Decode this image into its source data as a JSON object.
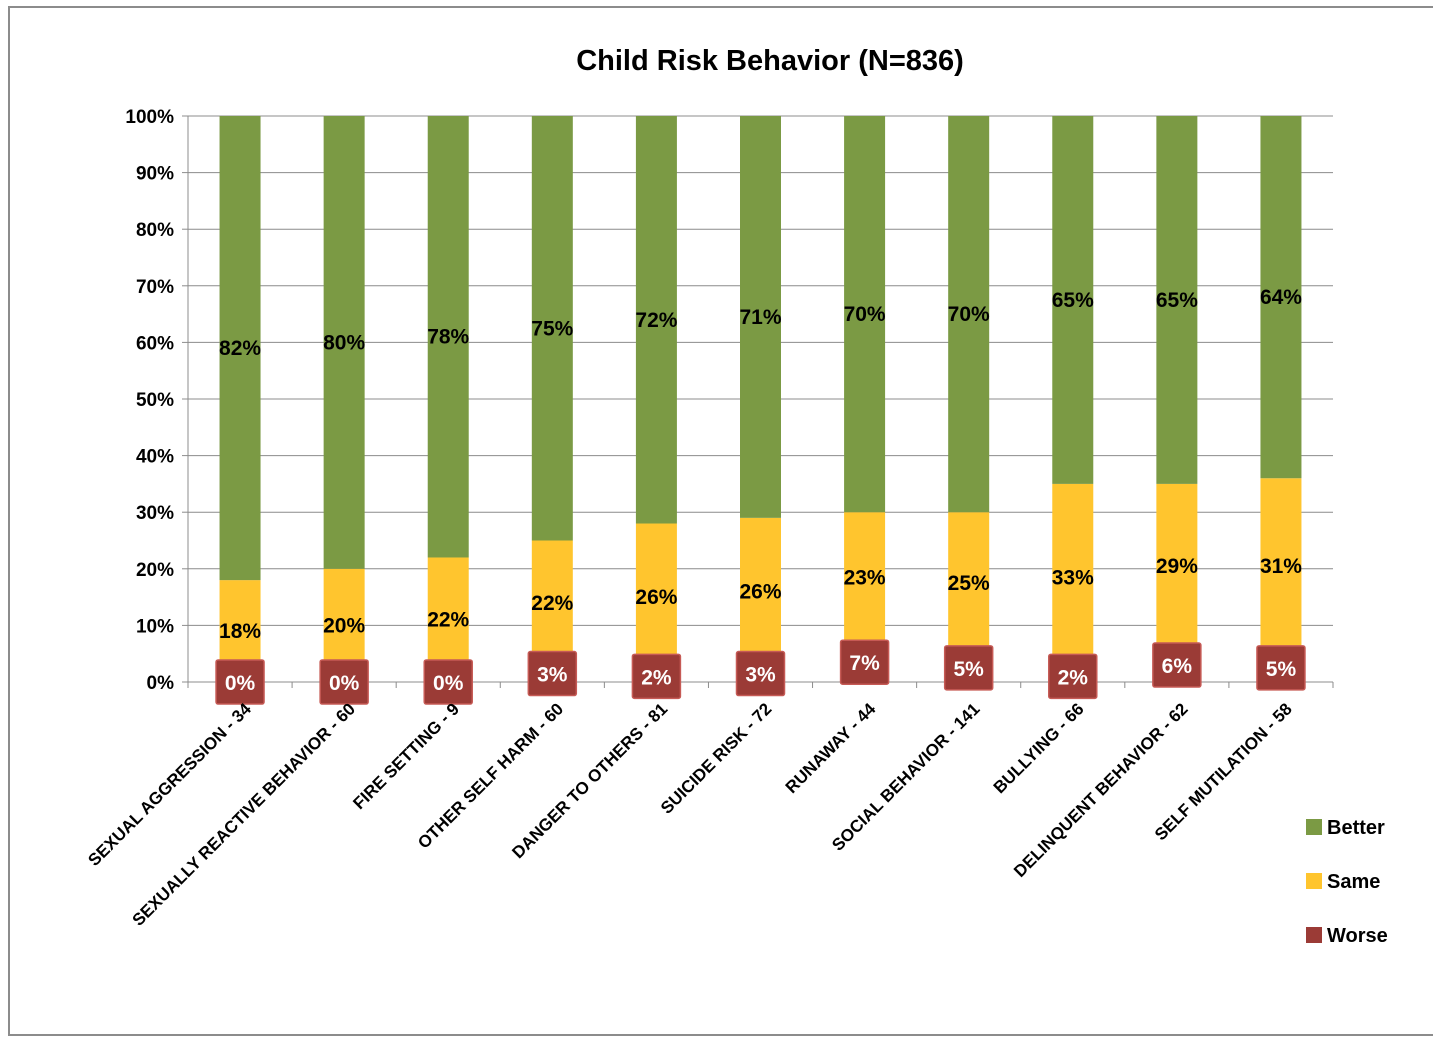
{
  "colors": {
    "better": "#7b9a44",
    "same": "#ffc52e",
    "worse": "#9b3b36",
    "worse_border": "#c65a55",
    "grid": "#8c8c8c"
  },
  "chart_data": {
    "type": "bar",
    "stacked": true,
    "title": "Child Risk Behavior  (N=836)",
    "categories": [
      "SEXUAL AGGRESSION - 34",
      "SEXUALLY REACTIVE BEHAVIOR - 60",
      "FIRE SETTING - 9",
      "OTHER SELF HARM - 60",
      "DANGER TO OTHERS - 81",
      "SUICIDE RISK - 72",
      "RUNAWAY - 44",
      "SOCIAL BEHAVIOR - 141",
      "BULLYING - 66",
      "DELINQUENT BEHAVIOR - 62",
      "SELF MUTILATION - 58"
    ],
    "series": [
      {
        "name": "Worse",
        "values": [
          0,
          0,
          0,
          3,
          2,
          3,
          7,
          5,
          2,
          6,
          5
        ],
        "labels": [
          "0%",
          "0%",
          "0%",
          "3%",
          "2%",
          "3%",
          "7%",
          "5%",
          "2%",
          "6%",
          "5%"
        ]
      },
      {
        "name": "Same",
        "values": [
          18,
          20,
          22,
          22,
          26,
          26,
          23,
          25,
          33,
          29,
          31
        ],
        "labels": [
          "18%",
          "20%",
          "22%",
          "22%",
          "26%",
          "26%",
          "23%",
          "25%",
          "33%",
          "29%",
          "31%"
        ]
      },
      {
        "name": "Better",
        "values": [
          82,
          80,
          78,
          75,
          72,
          71,
          70,
          70,
          65,
          65,
          64
        ],
        "labels": [
          "82%",
          "80%",
          "78%",
          "75%",
          "72%",
          "71%",
          "70%",
          "70%",
          "65%",
          "65%",
          "64%"
        ]
      }
    ],
    "ylim": [
      0,
      100
    ],
    "yticks": [
      "0%",
      "10%",
      "20%",
      "30%",
      "40%",
      "50%",
      "60%",
      "70%",
      "80%",
      "90%",
      "100%"
    ],
    "grid": true,
    "legend": {
      "placement": "right",
      "entries": [
        "Better",
        "Same",
        "Worse"
      ]
    }
  }
}
